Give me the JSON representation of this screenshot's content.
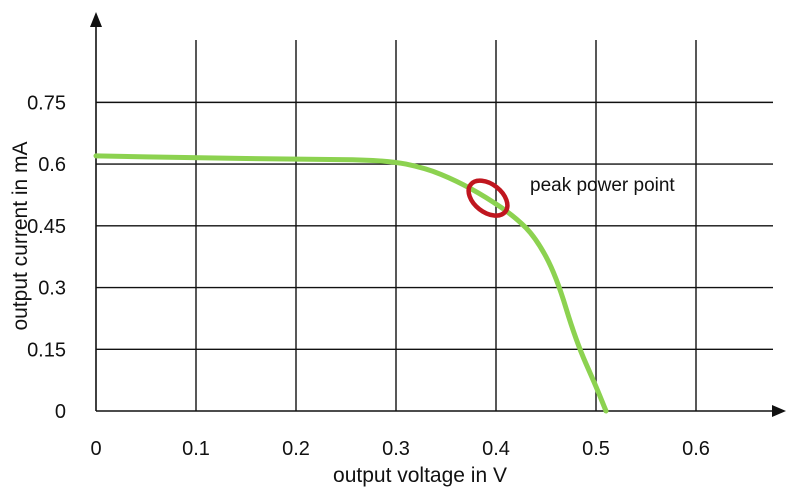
{
  "chart_data": {
    "type": "line",
    "title": "",
    "xlabel": "output voltage in V",
    "ylabel": "output current in mA",
    "xlim": [
      0,
      0.7
    ],
    "ylim": [
      0,
      0.9
    ],
    "x_ticks": [
      0,
      0.1,
      0.2,
      0.3,
      0.4,
      0.5,
      0.6
    ],
    "x_tick_labels": [
      "0",
      "0.1",
      "0.2",
      "0.3",
      "0.4",
      "0.5",
      "0.6"
    ],
    "y_ticks": [
      0,
      0.15,
      0.3,
      0.45,
      0.6,
      0.75
    ],
    "y_tick_labels": [
      "0",
      "0.15",
      "0.3",
      "0.45",
      "0.6",
      "0.75"
    ],
    "grid": true,
    "legend": "none",
    "series": [
      {
        "color": "#8cd250",
        "x": [
          0,
          0.1,
          0.2,
          0.29,
          0.33,
          0.36,
          0.39,
          0.42,
          0.44,
          0.46,
          0.48,
          0.5,
          0.51
        ],
        "y": [
          0.62,
          0.615,
          0.612,
          0.61,
          0.59,
          0.56,
          0.52,
          0.47,
          0.42,
          0.33,
          0.17,
          0.06,
          0.0
        ]
      }
    ],
    "annotations": [
      {
        "text": "peak power point",
        "marker": "ellipse",
        "color": "#c0161f",
        "x": 0.39,
        "y": 0.51
      }
    ]
  }
}
